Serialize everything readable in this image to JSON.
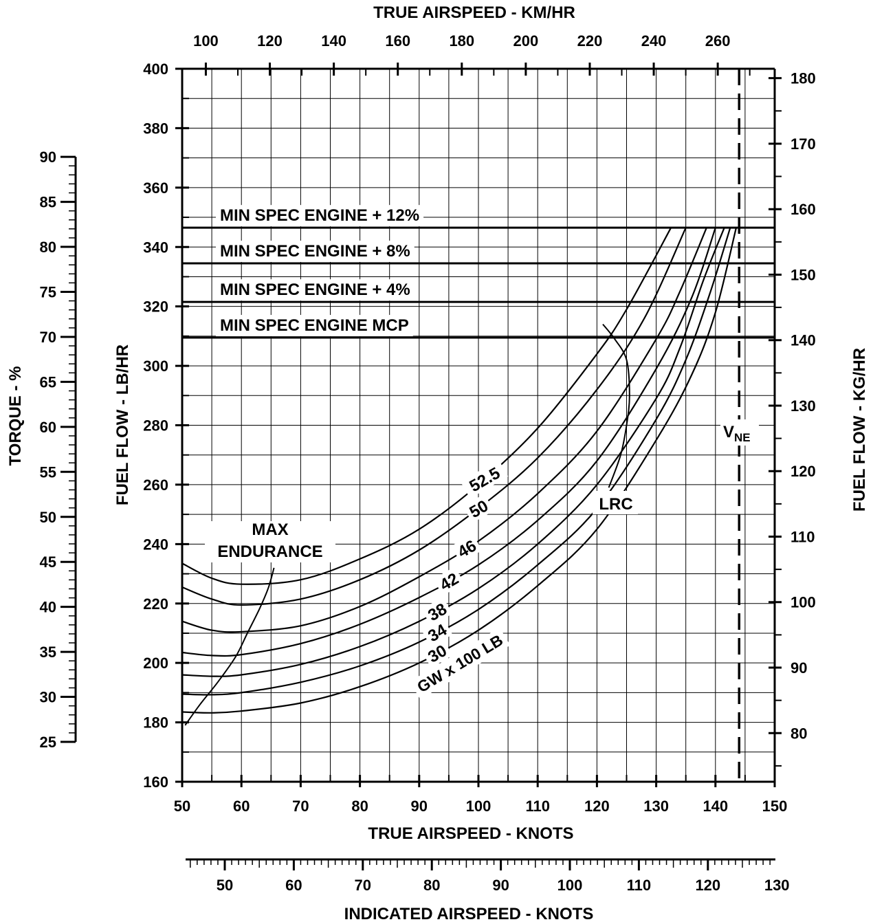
{
  "chart_data": {
    "type": "line",
    "x": {
      "label": "TRUE AIRSPEED - KNOTS",
      "range": [
        50,
        150
      ],
      "ticks": [
        "50",
        "60",
        "70",
        "80",
        "90",
        "100",
        "110",
        "120",
        "130",
        "140",
        "150"
      ]
    },
    "x_top": {
      "label": "TRUE AIRSPEED - KM/HR",
      "ticks": [
        "100",
        "120",
        "140",
        "160",
        "180",
        "200",
        "220",
        "240",
        "260"
      ]
    },
    "x_bottom2": {
      "label": "INDICATED AIRSPEED - KNOTS",
      "ticks": [
        "50",
        "60",
        "70",
        "80",
        "90",
        "100",
        "110",
        "120",
        "130"
      ]
    },
    "y": {
      "label": "FUEL FLOW - LB/HR",
      "range": [
        160,
        400
      ],
      "ticks": [
        "160",
        "180",
        "200",
        "220",
        "240",
        "260",
        "280",
        "300",
        "320",
        "340",
        "360",
        "380",
        "400"
      ]
    },
    "y_right": {
      "label": "FUEL FLOW - KG/HR",
      "ticks": [
        "80",
        "90",
        "100",
        "110",
        "120",
        "130",
        "140",
        "150",
        "160",
        "170",
        "180"
      ]
    },
    "y_torque": {
      "label": "TORQUE - %",
      "ticks": [
        "25",
        "30",
        "35",
        "40",
        "45",
        "50",
        "55",
        "60",
        "65",
        "70",
        "75",
        "80",
        "85",
        "90"
      ]
    },
    "limits": [
      {
        "label": "MIN SPEC ENGINE + 12%",
        "y": 346.5
      },
      {
        "label": "MIN SPEC ENGINE + 8%",
        "y": 334.5
      },
      {
        "label": "MIN SPEC ENGINE + 4%",
        "y": 321.5
      },
      {
        "label": "MIN SPEC ENGINE MCP",
        "y": 309.5
      }
    ],
    "vne": {
      "label_main": "V",
      "label_sub": "NE",
      "x": 144
    },
    "gw_label": "GW  x  100 LB",
    "series": [
      {
        "name": "30",
        "x": [
          50,
          55,
          60,
          70,
          80,
          90,
          100,
          110,
          120,
          130,
          136,
          140,
          143.5
        ],
        "y": [
          183.5,
          183.2,
          183.8,
          186.5,
          192,
          200,
          211,
          226,
          245,
          275,
          297,
          318,
          346.5
        ]
      },
      {
        "name": "34",
        "x": [
          50,
          55,
          60,
          70,
          80,
          90,
          100,
          110,
          120,
          130,
          135,
          139,
          142.5
        ],
        "y": [
          189.5,
          189.3,
          190,
          193.5,
          199,
          207,
          218,
          233,
          252,
          282,
          302,
          324,
          346.5
        ]
      },
      {
        "name": "38",
        "x": [
          50,
          55,
          60,
          70,
          80,
          90,
          100,
          110,
          120,
          130,
          134,
          138,
          141.5
        ],
        "y": [
          196,
          195.5,
          196,
          199.5,
          205.5,
          214,
          225,
          240,
          260,
          289,
          306,
          329,
          346.5
        ]
      },
      {
        "name": "42",
        "x": [
          50,
          55,
          60,
          70,
          80,
          90,
          100,
          110,
          120,
          130,
          136,
          140
        ],
        "y": [
          203.5,
          202.5,
          202.8,
          206.5,
          213,
          222,
          233,
          248,
          268,
          299,
          323,
          346.5
        ]
      },
      {
        "name": "46",
        "x": [
          50,
          55,
          60,
          70,
          80,
          90,
          100,
          110,
          120,
          130,
          134,
          138.5
        ],
        "y": [
          214,
          211,
          210.5,
          212.5,
          219,
          229,
          241,
          257,
          278,
          309,
          325,
          346.5
        ]
      },
      {
        "name": "50",
        "x": [
          50,
          55,
          60,
          70,
          80,
          90,
          100,
          110,
          120,
          128,
          135
        ],
        "y": [
          225.5,
          221.5,
          219.5,
          221.5,
          228,
          238,
          252,
          269,
          292,
          316,
          346.5
        ]
      },
      {
        "name": "52.5",
        "x": [
          50,
          55,
          60,
          70,
          80,
          90,
          100,
          110,
          120,
          125,
          132.5
        ],
        "y": [
          233.5,
          228.5,
          226.5,
          228,
          235,
          245,
          260,
          279,
          304,
          319,
          346.5
        ]
      }
    ],
    "guides": [
      {
        "name": "MAX ENDURANCE",
        "label_lines": [
          "MAX",
          "ENDURANCE"
        ],
        "x": [
          50.5,
          53,
          56,
          59,
          61,
          63,
          64.5,
          65.5
        ],
        "y": [
          179,
          186,
          193.5,
          202,
          210,
          218,
          225,
          232
        ]
      },
      {
        "name": "LRC",
        "label": "LRC",
        "x": [
          121,
          123,
          125,
          125.5,
          125,
          124,
          122
        ],
        "y": [
          314,
          309,
          302,
          290,
          280,
          270,
          259
        ]
      }
    ]
  }
}
